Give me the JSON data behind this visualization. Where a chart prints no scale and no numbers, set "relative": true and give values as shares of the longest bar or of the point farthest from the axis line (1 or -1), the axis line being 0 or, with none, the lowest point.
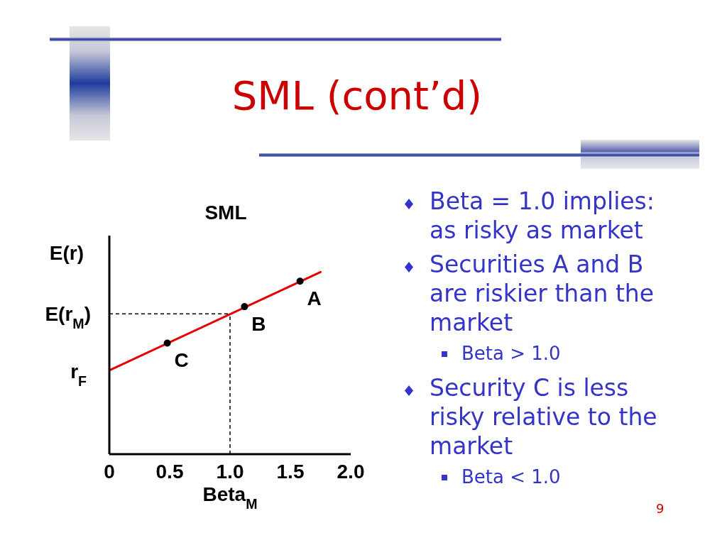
{
  "chart_data": [
    {
      "type": "other",
      "title": "SML (cont’d)"
    },
    {
      "type": "line",
      "title": "SML",
      "xlabel": "Beta$_{M}$",
      "ylabel": "E(r)",
      "relative": true,
      "xlim": [
        0,
        2
      ],
      "xticks": [
        0,
        0.5,
        {
          "value": 1,
          "label": "1.0"
        },
        1.5,
        {
          "value": 2,
          "label": "2.0"
        }
      ],
      "series": [
        {
          "color": "#e60000",
          "x": [
            0,
            1.75
          ],
          "values": [
            0.46,
            1
          ]
        },
        {
          "name": "C",
          "type": "scatter",
          "marker": "circle",
          "color": "#000000",
          "x": [
            0.48
          ],
          "values": [
            0.61
          ]
        },
        {
          "name": "B",
          "type": "scatter",
          "marker": "circle",
          "color": "#000000",
          "x": [
            1.12
          ],
          "values": [
            0.81
          ]
        },
        {
          "name": "A",
          "type": "scatter",
          "marker": "circle",
          "color": "#000000",
          "x": [
            1.58
          ],
          "values": [
            0.95
          ]
        }
      ],
      "ref_lines": [
        {
          "axis": "y",
          "value": 0.77,
          "label": "E(r$_{M}$)",
          "color": "#000000",
          "line_style": "dashed"
        },
        {
          "axis": "x",
          "value": 1,
          "color": "#000000",
          "line_style": "dashed"
        }
      ],
      "annotations": [
        {
          "text": "r$_{F}$",
          "x": 0,
          "y": 0.46
        }
      ]
    },
    {
      "type": "other",
      "annotations": [
        "Beta = 1.0 implies: as risky as market",
        "Securities A and B are riskier than the market",
        "Beta > 1.0",
        "Security C is less risky relative to the market",
        "Beta < 1.0",
        "9"
      ]
    }
  ]
}
